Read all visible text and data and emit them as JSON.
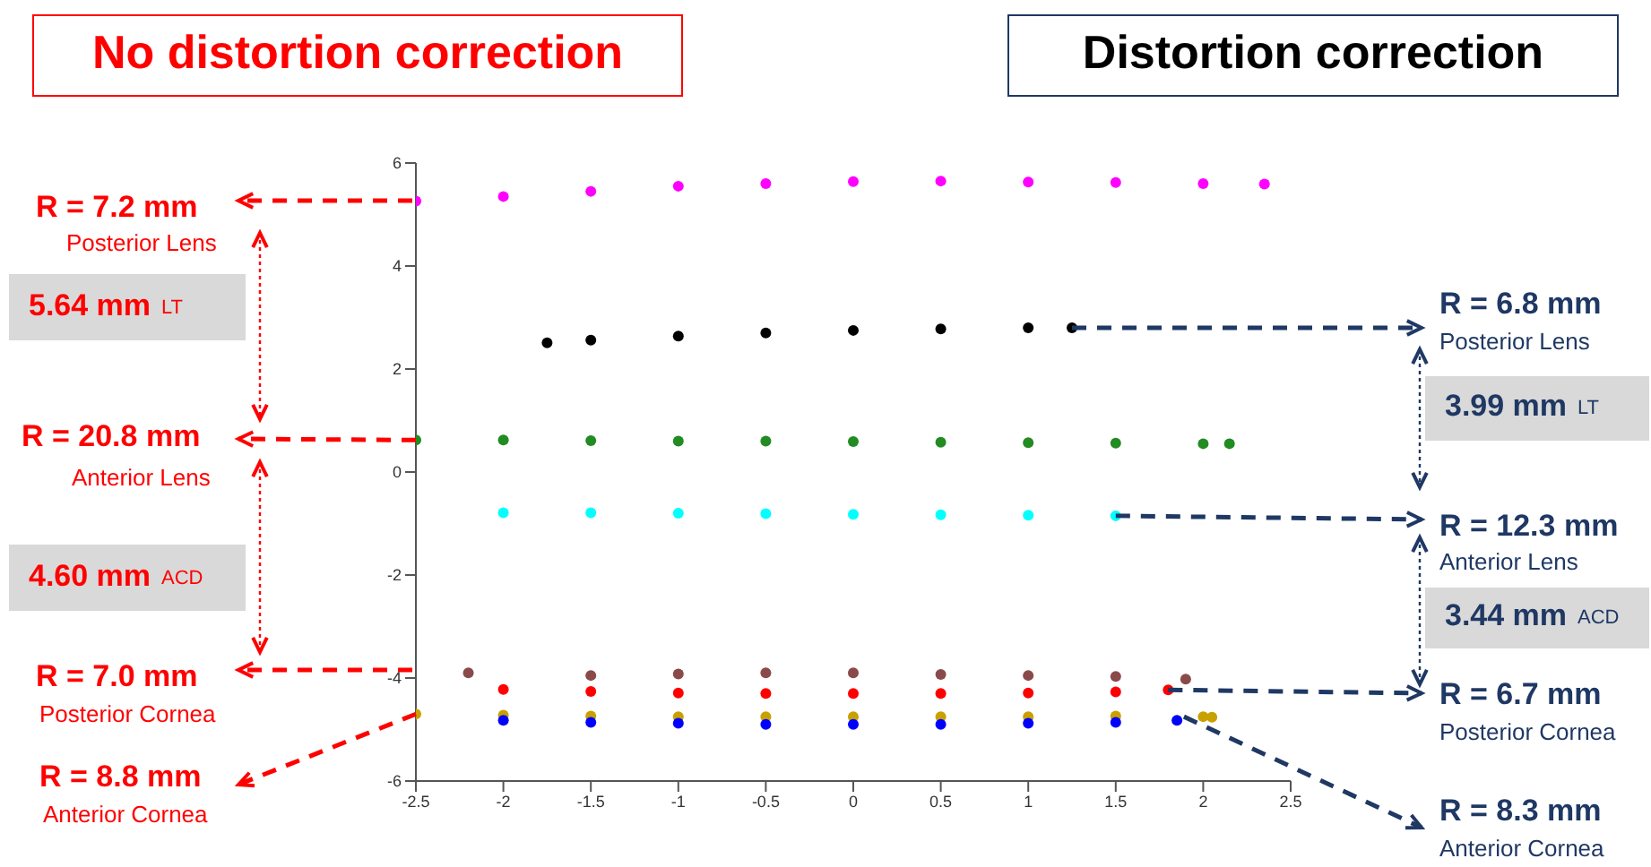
{
  "chart_data": {
    "type": "scatter",
    "marker": "circle",
    "grid": false,
    "xlim": [
      -2.5,
      2.5
    ],
    "xticks": [
      -2.5,
      -2,
      -1.5,
      -1,
      -0.5,
      0,
      0.5,
      1,
      1.5,
      2,
      2.5
    ],
    "ylim": [
      -6,
      6
    ],
    "yticks": [
      -6,
      -4,
      -2,
      0,
      2,
      4,
      6
    ],
    "series": [
      {
        "color": "#ff00ff",
        "x": [
          -2.5,
          -2,
          -1.5,
          -1,
          -0.5,
          0,
          0.5,
          1,
          1.5,
          2,
          2.35
        ],
        "values": [
          5.26,
          5.35,
          5.45,
          5.55,
          5.6,
          5.64,
          5.65,
          5.63,
          5.62,
          5.6,
          5.59
        ]
      },
      {
        "color": "#000000",
        "x": [
          -1.75,
          -1.5,
          -1,
          -0.5,
          0,
          0.5,
          1,
          1.25
        ],
        "values": [
          2.51,
          2.56,
          2.64,
          2.7,
          2.75,
          2.78,
          2.8,
          2.8
        ]
      },
      {
        "color": "#228b22",
        "x": [
          -2.5,
          -2,
          -1.5,
          -1,
          -0.5,
          0,
          0.5,
          1,
          1.5,
          2,
          2.15
        ],
        "values": [
          0.62,
          0.62,
          0.61,
          0.6,
          0.6,
          0.59,
          0.58,
          0.57,
          0.56,
          0.55,
          0.55
        ]
      },
      {
        "color": "#00ffff",
        "x": [
          -2,
          -1.5,
          -1,
          -0.5,
          0,
          0.5,
          1,
          1.5
        ],
        "values": [
          -0.79,
          -0.79,
          -0.8,
          -0.81,
          -0.82,
          -0.83,
          -0.84,
          -0.85
        ]
      },
      {
        "color": "#8b4a4a",
        "x": [
          -2.2,
          -1.5,
          -1,
          -0.5,
          0,
          0.5,
          1,
          1.5,
          1.9
        ],
        "values": [
          -3.9,
          -3.95,
          -3.92,
          -3.9,
          -3.9,
          -3.93,
          -3.95,
          -3.97,
          -4.02
        ]
      },
      {
        "color": "#ff0000",
        "x": [
          -2,
          -1.5,
          -1,
          -0.5,
          0,
          0.5,
          1,
          1.5,
          1.8
        ],
        "values": [
          -4.22,
          -4.26,
          -4.29,
          -4.3,
          -4.3,
          -4.3,
          -4.29,
          -4.27,
          -4.23
        ]
      },
      {
        "color": "#c8a000",
        "x": [
          -2.5,
          -2,
          -1.5,
          -1,
          -0.5,
          0,
          0.5,
          1,
          1.5,
          2,
          2.05
        ],
        "values": [
          -4.7,
          -4.72,
          -4.74,
          -4.75,
          -4.75,
          -4.75,
          -4.75,
          -4.75,
          -4.74,
          -4.75,
          -4.76
        ]
      },
      {
        "color": "#0000ff",
        "x": [
          -2,
          -1.5,
          -1,
          -0.5,
          0,
          0.5,
          1,
          1.5,
          1.85
        ],
        "values": [
          -4.82,
          -4.86,
          -4.88,
          -4.9,
          -4.9,
          -4.9,
          -4.88,
          -4.86,
          -4.82
        ]
      }
    ],
    "annotations": [
      "No distortion correction",
      "Distortion correction",
      "R = 7.2 mm",
      "Posterior Lens",
      "5.64 mm",
      "LT",
      {
        "text": "R = 20.8 mm",
        "x": -2.5,
        "y": 0.62
      },
      "Anterior Lens",
      "4.60 mm",
      "ACD",
      "R = 7.0 mm",
      "Posterior Cornea",
      {
        "text": "R = 8.8 mm",
        "x": -2.5,
        "y": -4.7
      },
      "Anterior Cornea",
      {
        "text": "R = 6.8 mm",
        "x": 1.25,
        "y": 2.8
      },
      "Posterior Lens",
      "3.99 mm",
      "LT",
      {
        "text": "R = 12.3 mm",
        "x": 1.5,
        "y": -0.85
      },
      "Anterior Lens",
      "3.44 mm",
      "ACD",
      {
        "text": "R = 6.7 mm",
        "x": 1.8,
        "y": -4.23
      },
      "Posterior Cornea",
      {
        "text": "R = 8.3 mm",
        "x": 1.89,
        "y": -4.75
      },
      "Anterior Cornea"
    ]
  }
}
